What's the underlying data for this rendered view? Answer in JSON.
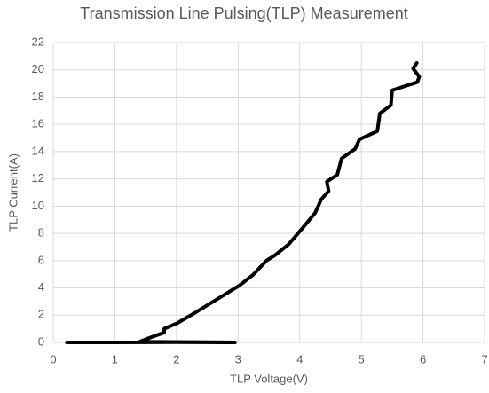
{
  "chart_data": {
    "type": "line",
    "title": "Transmission Line Pulsing(TLP) Measurement",
    "x_label": "TLP Voltage(V)",
    "y_label": "TLP Current(A)",
    "x": [
      0.22,
      1.0,
      2.0,
      2.95,
      1.4,
      1.6,
      1.8,
      1.8,
      2.02,
      2.31,
      2.67,
      3.03,
      3.24,
      3.46,
      3.6,
      3.82,
      4.03,
      4.25,
      4.35,
      4.47,
      4.44,
      4.61,
      4.68,
      4.9,
      4.97,
      5.26,
      5.3,
      5.48,
      5.5,
      5.91,
      5.94,
      5.84,
      5.9
    ],
    "series": [
      {
        "name": "TLP",
        "color": "#000000",
        "values": [
          0,
          0,
          0.02,
          0,
          0.05,
          0.4,
          0.72,
          1.0,
          1.43,
          2.2,
          3.2,
          4.2,
          4.95,
          6.0,
          6.4,
          7.2,
          8.3,
          9.5,
          10.5,
          11.1,
          11.8,
          12.3,
          13.5,
          14.2,
          14.9,
          15.5,
          16.8,
          17.4,
          18.5,
          19.1,
          19.5,
          20.1,
          20.5
        ]
      }
    ],
    "xlim": [
      0,
      7
    ],
    "xticks": [
      0,
      1,
      2,
      3,
      4,
      5,
      6,
      7
    ],
    "ylim": [
      0,
      22
    ],
    "yticks": [
      0,
      2,
      4,
      6,
      8,
      10,
      12,
      14,
      16,
      18,
      20,
      22
    ],
    "grid": true
  }
}
